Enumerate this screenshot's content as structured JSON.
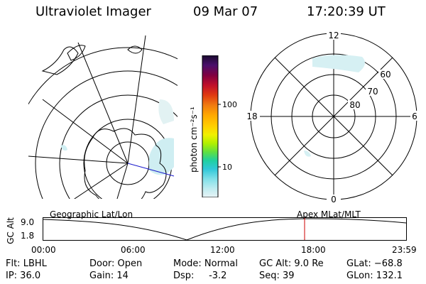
{
  "header": {
    "title": "Ultraviolet Imager",
    "date": "09 Mar 07",
    "time": "17:20:39 UT"
  },
  "colorbar": {
    "label": "photon cm⁻²s⁻¹",
    "ticks": [
      "100",
      "10"
    ],
    "colors": [
      "#1a0a2e",
      "#4a0f6b",
      "#800040",
      "#c0102a",
      "#e03a10",
      "#f07a10",
      "#ffa800",
      "#ffd000",
      "#f0f000",
      "#b0f000",
      "#60e040",
      "#20d0a0",
      "#30c8d8",
      "#80e0e8",
      "#c0ecf0",
      "#e8f4f6"
    ]
  },
  "polar": {
    "mlt_labels": {
      "top": "12",
      "bottom": "0",
      "left": "18",
      "right": "6"
    },
    "lat_labels": [
      "60",
      "70",
      "80"
    ]
  },
  "timeline": {
    "left_label": "Geographic Lat/Lon",
    "right_label": "Apex  MLat/MLT",
    "y_axis_label": "GC Alt",
    "y_ticks": [
      "9.0",
      "1.8"
    ],
    "x_ticks": [
      "00:00",
      "06:00",
      "12:00",
      "18:00",
      "23:59"
    ],
    "marker_color": "#cc0000",
    "marker_time": "17:20:39"
  },
  "info": {
    "row1": [
      "Flt: LBHL",
      "Door: Open",
      "Mode: Normal",
      "GC Alt: 9.0 Re",
      "GLat: −68.8"
    ],
    "row2": [
      "IP: 36.0",
      "Gain: 14",
      "Dsp:     -3.2",
      "Seq: 39",
      "GLon: 132.1"
    ]
  }
}
